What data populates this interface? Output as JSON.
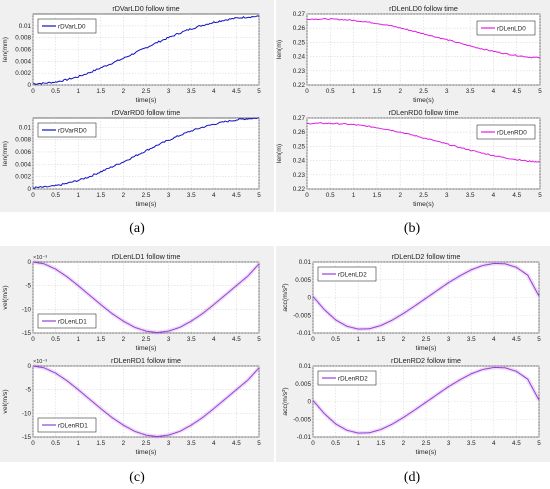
{
  "figure": {
    "panel_labels": [
      "(a)",
      "(b)",
      "(c)",
      "(d)"
    ]
  },
  "chart_data": [
    {
      "id": "a1",
      "type": "line",
      "title": "rDVarLD0 follow time",
      "xlabel": "time(s)",
      "ylabel": "len(mm)",
      "xlim": [
        0,
        5
      ],
      "ylim": [
        0,
        0.012
      ],
      "xticks": [
        "0",
        "0.5",
        "1",
        "1.5",
        "2",
        "2.5",
        "3",
        "3.5",
        "4",
        "4.5",
        "5"
      ],
      "yticks": [
        "0",
        "0.002",
        "0.004",
        "0.006",
        "0.008",
        "0.01"
      ],
      "grid": true,
      "legend_position": "top-left",
      "color": "#1010c0",
      "noise": "high",
      "series": [
        {
          "name": "rDVarLD0",
          "x": [
            0,
            0.25,
            0.5,
            0.75,
            1,
            1.25,
            1.5,
            1.75,
            2,
            2.25,
            2.5,
            2.75,
            3,
            3.25,
            3.5,
            3.75,
            4,
            4.25,
            4.5,
            4.75,
            5
          ],
          "values": [
            0.0002,
            0.0003,
            0.0005,
            0.0009,
            0.0014,
            0.0021,
            0.0029,
            0.0037,
            0.0045,
            0.0054,
            0.0063,
            0.0072,
            0.008,
            0.0088,
            0.0095,
            0.0101,
            0.0106,
            0.011,
            0.0113,
            0.0115,
            0.0116
          ]
        }
      ]
    },
    {
      "id": "a2",
      "type": "line",
      "title": "rDVarRD0 follow time",
      "xlabel": "time(s)",
      "ylabel": "len(mm)",
      "xlim": [
        0,
        5
      ],
      "ylim": [
        0,
        0.0115
      ],
      "xticks": [
        "0",
        "0.5",
        "1",
        "1.5",
        "2",
        "2.5",
        "3",
        "3.5",
        "4",
        "4.5",
        "5"
      ],
      "yticks": [
        "0",
        "0.002",
        "0.004",
        "0.006",
        "0.008",
        "0.01"
      ],
      "grid": true,
      "legend_position": "top-left",
      "color": "#1010c0",
      "noise": "high",
      "series": [
        {
          "name": "rDVarRD0",
          "x": [
            0,
            0.25,
            0.5,
            0.75,
            1,
            1.25,
            1.5,
            1.75,
            2,
            2.25,
            2.5,
            2.75,
            3,
            3.25,
            3.5,
            3.75,
            4,
            4.25,
            4.5,
            4.75,
            5
          ],
          "values": [
            0.0002,
            0.0003,
            0.0005,
            0.0009,
            0.0014,
            0.002,
            0.0028,
            0.0036,
            0.0044,
            0.0053,
            0.0062,
            0.0071,
            0.0079,
            0.0087,
            0.0094,
            0.01,
            0.0105,
            0.0109,
            0.0112,
            0.0114,
            0.0115
          ]
        }
      ]
    },
    {
      "id": "b1",
      "type": "line",
      "title": "rDLenLD0 follow time",
      "xlabel": "time(s)",
      "ylabel": "len(m)",
      "xlim": [
        0,
        5
      ],
      "ylim": [
        0.22,
        0.27
      ],
      "xticks": [
        "0",
        "0.5",
        "1",
        "1.5",
        "2",
        "2.5",
        "3",
        "3.5",
        "4",
        "4.5",
        "5"
      ],
      "yticks": [
        "0.22",
        "0.23",
        "0.24",
        "0.25",
        "0.26",
        "0.27"
      ],
      "grid": true,
      "legend_position": "top-right",
      "color": "#e020e0",
      "noise": "medium",
      "series": [
        {
          "name": "rDLenLD0",
          "x": [
            0,
            0.25,
            0.5,
            0.75,
            1,
            1.25,
            1.5,
            1.75,
            2,
            2.25,
            2.5,
            2.75,
            3,
            3.25,
            3.5,
            3.75,
            4,
            4.25,
            4.5,
            4.75,
            5
          ],
          "values": [
            0.2664,
            0.2665,
            0.2664,
            0.2661,
            0.2655,
            0.2646,
            0.2634,
            0.262,
            0.2602,
            0.2582,
            0.2561,
            0.254,
            0.2519,
            0.2497,
            0.2475,
            0.2455,
            0.2437,
            0.2421,
            0.2408,
            0.2397,
            0.2392
          ]
        }
      ]
    },
    {
      "id": "b2",
      "type": "line",
      "title": "rDLenRD0 follow time",
      "xlabel": "time(s)",
      "ylabel": "len(m)",
      "xlim": [
        0,
        5
      ],
      "ylim": [
        0.22,
        0.27
      ],
      "xticks": [
        "0",
        "0.5",
        "1",
        "1.5",
        "2",
        "2.5",
        "3",
        "3.5",
        "4",
        "4.5",
        "5"
      ],
      "yticks": [
        "0.22",
        "0.23",
        "0.24",
        "0.25",
        "0.26",
        "0.27"
      ],
      "grid": true,
      "legend_position": "top-right",
      "color": "#e020e0",
      "noise": "medium",
      "series": [
        {
          "name": "rDLenRD0",
          "x": [
            0,
            0.25,
            0.5,
            0.75,
            1,
            1.25,
            1.5,
            1.75,
            2,
            2.25,
            2.5,
            2.75,
            3,
            3.25,
            3.5,
            3.75,
            4,
            4.25,
            4.5,
            4.75,
            5
          ],
          "values": [
            0.2661,
            0.2663,
            0.2662,
            0.2659,
            0.2653,
            0.2644,
            0.2632,
            0.2618,
            0.2601,
            0.2581,
            0.256,
            0.2539,
            0.2517,
            0.2495,
            0.2474,
            0.2454,
            0.2436,
            0.242,
            0.2407,
            0.2396,
            0.2391
          ]
        }
      ]
    },
    {
      "id": "c1",
      "type": "line",
      "title": "rDLenLD1 follow time",
      "xlabel": "time(s)",
      "ylabel": "vel(m/s)",
      "exponent_label": "×10⁻³",
      "xlim": [
        0,
        5
      ],
      "ylim": [
        -15,
        0
      ],
      "xticks": [
        "0",
        "0.5",
        "1",
        "1.5",
        "2",
        "2.5",
        "3",
        "3.5",
        "4",
        "4.5",
        "5"
      ],
      "yticks": [
        "-15",
        "-10",
        "-5",
        "0"
      ],
      "grid": true,
      "legend_position": "bottom-left",
      "color": "#9a40d6",
      "noise": "none",
      "series": [
        {
          "name": "rDLenLD1",
          "x": [
            0,
            0.25,
            0.5,
            0.75,
            1,
            1.25,
            1.5,
            1.75,
            2,
            2.25,
            2.5,
            2.75,
            3,
            3.25,
            3.5,
            3.75,
            4,
            4.25,
            4.5,
            4.75,
            5
          ],
          "values": [
            0,
            -0.4,
            -1.5,
            -3.1,
            -5.0,
            -7.0,
            -9.0,
            -10.9,
            -12.5,
            -13.8,
            -14.6,
            -14.9,
            -14.6,
            -13.8,
            -12.5,
            -10.9,
            -9.0,
            -7.0,
            -5.0,
            -3.0,
            -0.4
          ]
        }
      ]
    },
    {
      "id": "c2",
      "type": "line",
      "title": "rDLenRD1 follow time",
      "xlabel": "time(s)",
      "ylabel": "vel(m/s)",
      "exponent_label": "×10⁻³",
      "xlim": [
        0,
        5
      ],
      "ylim": [
        -15,
        0
      ],
      "xticks": [
        "0",
        "0.5",
        "1",
        "1.5",
        "2",
        "2.5",
        "3",
        "3.5",
        "4",
        "4.5",
        "5"
      ],
      "yticks": [
        "-15",
        "-10",
        "-5",
        "0"
      ],
      "grid": true,
      "legend_position": "bottom-left",
      "color": "#9a40d6",
      "noise": "none",
      "series": [
        {
          "name": "rDLenRD1",
          "x": [
            0,
            0.25,
            0.5,
            0.75,
            1,
            1.25,
            1.5,
            1.75,
            2,
            2.25,
            2.5,
            2.75,
            3,
            3.25,
            3.5,
            3.75,
            4,
            4.25,
            4.5,
            4.75,
            5
          ],
          "values": [
            0,
            -0.4,
            -1.5,
            -3.1,
            -5.0,
            -7.0,
            -9.0,
            -10.9,
            -12.5,
            -13.8,
            -14.6,
            -14.9,
            -14.6,
            -13.8,
            -12.5,
            -10.9,
            -9.0,
            -7.0,
            -5.0,
            -3.0,
            -0.4
          ]
        }
      ]
    },
    {
      "id": "d1",
      "type": "line",
      "title": "rDLenLD2 follow time",
      "xlabel": "time(s)",
      "ylabel": "acc(m/s²)",
      "xlim": [
        0,
        5
      ],
      "ylim": [
        -0.01,
        0.01
      ],
      "xticks": [
        "0",
        "0.5",
        "1",
        "1.5",
        "2",
        "2.5",
        "3",
        "3.5",
        "4",
        "4.5",
        "5"
      ],
      "yticks": [
        "-0.01",
        "-0.005",
        "0",
        "0.005",
        "0.01"
      ],
      "grid": true,
      "legend_position": "top-left",
      "color": "#9a40d6",
      "noise": "none",
      "series": [
        {
          "name": "rDLenLD2",
          "x": [
            0,
            0.25,
            0.5,
            0.75,
            1,
            1.25,
            1.5,
            1.75,
            2,
            2.25,
            2.5,
            2.75,
            3,
            3.25,
            3.5,
            3.75,
            4,
            4.25,
            4.5,
            4.75,
            5
          ],
          "values": [
            0.0003,
            -0.0034,
            -0.0063,
            -0.0081,
            -0.0089,
            -0.0088,
            -0.0079,
            -0.0064,
            -0.0045,
            -0.0024,
            -0.0002,
            0.002,
            0.0042,
            0.0061,
            0.0078,
            0.009,
            0.0096,
            0.0095,
            0.0085,
            0.0063,
            0.0004
          ]
        }
      ]
    },
    {
      "id": "d2",
      "type": "line",
      "title": "rDLenRD2 follow time",
      "xlabel": "time(s)",
      "ylabel": "acc(m/s²)",
      "xlim": [
        0,
        5
      ],
      "ylim": [
        -0.01,
        0.01
      ],
      "xticks": [
        "0",
        "0.5",
        "1",
        "1.5",
        "2",
        "2.5",
        "3",
        "3.5",
        "4",
        "4.5",
        "5"
      ],
      "yticks": [
        "-0.01",
        "-0.005",
        "0",
        "0.005",
        "0.01"
      ],
      "grid": true,
      "legend_position": "top-left",
      "color": "#9a40d6",
      "noise": "none",
      "series": [
        {
          "name": "rDLenRD2",
          "x": [
            0,
            0.25,
            0.5,
            0.75,
            1,
            1.25,
            1.5,
            1.75,
            2,
            2.25,
            2.5,
            2.75,
            3,
            3.25,
            3.5,
            3.75,
            4,
            4.25,
            4.5,
            4.75,
            5
          ],
          "values": [
            0.0003,
            -0.0034,
            -0.0063,
            -0.0081,
            -0.0089,
            -0.0088,
            -0.0079,
            -0.0064,
            -0.0045,
            -0.0024,
            -0.0002,
            0.002,
            0.0042,
            0.0061,
            0.0078,
            0.009,
            0.0096,
            0.0095,
            0.0085,
            0.0063,
            0.0004
          ]
        }
      ]
    }
  ]
}
